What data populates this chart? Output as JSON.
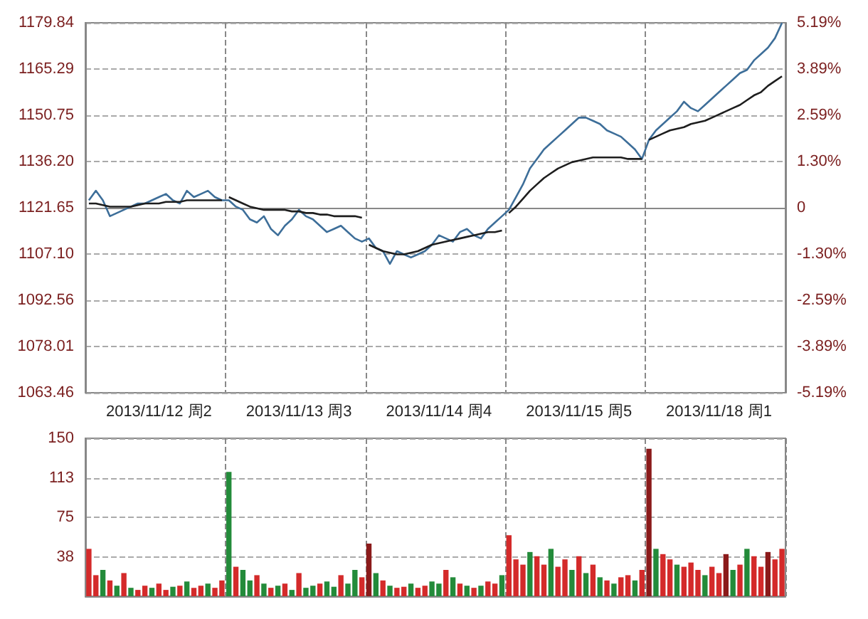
{
  "chart_data": [
    {
      "type": "line",
      "categories": [
        null,
        null,
        null,
        null,
        null,
        null,
        null,
        null,
        null,
        null,
        "2013/11/12 周2",
        null,
        null,
        null,
        null,
        null,
        null,
        null,
        null,
        null,
        null,
        null,
        null,
        null,
        null,
        null,
        null,
        null,
        null,
        null,
        "2013/11/13 周3",
        null,
        null,
        null,
        null,
        null,
        null,
        null,
        null,
        null,
        null,
        null,
        null,
        null,
        null,
        null,
        null,
        null,
        null,
        null,
        "2013/11/14 周4",
        null,
        null,
        null,
        null,
        null,
        null,
        null,
        null,
        null,
        null,
        null,
        null,
        null,
        null,
        null,
        null,
        null,
        null,
        null,
        "2013/11/15 周5",
        null,
        null,
        null,
        null,
        null,
        null,
        null,
        null,
        null,
        null,
        null,
        null,
        null,
        null,
        null,
        null,
        null,
        null,
        null,
        "2013/11/18 周1",
        null,
        null,
        null,
        null,
        null,
        null,
        null,
        null,
        null
      ],
      "ylim": [
        1063.46,
        1179.84
      ],
      "yticks": [
        1063.46,
        {
          "value": 1078.01,
          "label": "1078.01"
        },
        1092.56,
        {
          "value": 1107.1,
          "label": "1107.10"
        },
        1121.65,
        {
          "value": 1136.2,
          "label": "1136.20"
        },
        1150.75,
        1165.29,
        1179.84
      ],
      "y2lim": [
        -5.19,
        5.19
      ],
      "y2ticks": [
        {
          "value": -5.19,
          "label": "-5.19%"
        },
        {
          "value": -3.89,
          "label": "-3.89%"
        },
        {
          "value": -2.59,
          "label": "-2.59%"
        },
        {
          "value": -1.3,
          "label": "-1.30%"
        },
        0,
        {
          "value": 1.3,
          "label": "1.30%"
        },
        {
          "value": 2.59,
          "label": "2.59%"
        },
        {
          "value": 3.89,
          "label": "3.89%"
        },
        {
          "value": 5.19,
          "label": "5.19%"
        }
      ],
      "grid": true,
      "series": [
        {
          "color": "#3d6e99",
          "values": [
            1124,
            1127,
            1124,
            1119,
            1120,
            1121,
            1122,
            1123,
            1123,
            1124,
            1125,
            1126,
            1124,
            1123,
            1127,
            1125,
            1126,
            1127,
            1125,
            1124,
            1124,
            1122,
            1121,
            1118,
            1117,
            1119,
            1115,
            1113,
            1116,
            1118,
            1121,
            1119,
            1118,
            1116,
            1114,
            1115,
            1116,
            1114,
            1112,
            1111,
            1112,
            1109,
            1108,
            1104,
            1108,
            1107,
            1106,
            1107,
            1108,
            1110,
            1113,
            1112,
            1111,
            1114,
            1115,
            1113,
            1112,
            1115,
            1117,
            1119,
            1121,
            1125,
            1129,
            1134,
            1137,
            1140,
            1142,
            1144,
            1146,
            1148,
            1150,
            1150,
            1149,
            1148,
            1146,
            1145,
            1144,
            1142,
            1140,
            1137,
            1143,
            1146,
            1148,
            1150,
            1152,
            1155,
            1153,
            1152,
            1154,
            1156,
            1158,
            1160,
            1162,
            1164,
            1165,
            1168,
            1170,
            1172,
            1175,
            1179.8
          ]
        },
        {
          "color": "#1e1e1e",
          "values": [
            1123,
            1123,
            1122.5,
            1122,
            1122,
            1122,
            1122,
            1122.5,
            1123,
            1123,
            1123,
            1123.5,
            1123.5,
            1123.5,
            1124,
            1124,
            1124,
            1124,
            1124,
            1124,
            null,
            null,
            null,
            null,
            null,
            null,
            null,
            null,
            null,
            null,
            null,
            null,
            null,
            null,
            null,
            null,
            null,
            null,
            null,
            null,
            null,
            null,
            null,
            null,
            null,
            null,
            null,
            null,
            null,
            null,
            null,
            null,
            null,
            null,
            null,
            null,
            null,
            null,
            null,
            null,
            null,
            null,
            null,
            null,
            null,
            null,
            null,
            null,
            null,
            null,
            null,
            null,
            null,
            null,
            null,
            null,
            null,
            null,
            null,
            null,
            null,
            null,
            null,
            null,
            null,
            null,
            null,
            null,
            null,
            null,
            null,
            null,
            null,
            null,
            null,
            null,
            null,
            null,
            null,
            null
          ]
        },
        {
          "color": "#1e1e1e",
          "values": [
            null,
            null,
            null,
            null,
            null,
            null,
            null,
            null,
            null,
            null,
            null,
            null,
            null,
            null,
            null,
            null,
            null,
            null,
            null,
            null,
            1125,
            1124,
            1123,
            1122,
            1121.5,
            1121,
            1121,
            1121,
            1121,
            1120.5,
            1120.5,
            1120,
            1120,
            1119.5,
            1119.5,
            1119,
            1119,
            1119,
            1119,
            1118.5,
            null,
            null,
            null,
            null,
            null,
            null,
            null,
            null,
            null,
            null,
            null,
            null,
            null,
            null,
            null,
            null,
            null,
            null,
            null,
            null,
            null,
            null,
            null,
            null,
            null,
            null,
            null,
            null,
            null,
            null,
            null,
            null,
            null,
            null,
            null,
            null,
            null,
            null,
            null,
            null,
            null,
            null,
            null,
            null,
            null,
            null,
            null,
            null,
            null,
            null,
            null,
            null,
            null,
            null,
            null,
            null,
            null,
            null,
            null,
            null
          ]
        },
        {
          "color": "#1e1e1e",
          "values": [
            null,
            null,
            null,
            null,
            null,
            null,
            null,
            null,
            null,
            null,
            null,
            null,
            null,
            null,
            null,
            null,
            null,
            null,
            null,
            null,
            null,
            null,
            null,
            null,
            null,
            null,
            null,
            null,
            null,
            null,
            null,
            null,
            null,
            null,
            null,
            null,
            null,
            null,
            null,
            null,
            1110,
            1109,
            1108,
            1107.5,
            1107,
            1107,
            1107.5,
            1108,
            1109,
            1110,
            1110.5,
            1111,
            1111.5,
            1112,
            1112.5,
            1113,
            1113.5,
            1114,
            1114,
            1114.5,
            null,
            null,
            null,
            null,
            null,
            null,
            null,
            null,
            null,
            null,
            null,
            null,
            null,
            null,
            null,
            null,
            null,
            null,
            null,
            null,
            null,
            null,
            null,
            null,
            null,
            null,
            null,
            null,
            null,
            null,
            null,
            null,
            null,
            null,
            null,
            null,
            null,
            null,
            null,
            null
          ]
        },
        {
          "color": "#1e1e1e",
          "values": [
            null,
            null,
            null,
            null,
            null,
            null,
            null,
            null,
            null,
            null,
            null,
            null,
            null,
            null,
            null,
            null,
            null,
            null,
            null,
            null,
            null,
            null,
            null,
            null,
            null,
            null,
            null,
            null,
            null,
            null,
            null,
            null,
            null,
            null,
            null,
            null,
            null,
            null,
            null,
            null,
            null,
            null,
            null,
            null,
            null,
            null,
            null,
            null,
            null,
            null,
            null,
            null,
            null,
            null,
            null,
            null,
            null,
            null,
            null,
            null,
            1120,
            1122,
            1124.5,
            1127,
            1129,
            1131,
            1132.5,
            1134,
            1135,
            1136,
            1136.5,
            1137,
            1137.5,
            1137.5,
            1137.5,
            1137.5,
            1137.5,
            1137,
            1137,
            1137,
            null,
            null,
            null,
            null,
            null,
            null,
            null,
            null,
            null,
            null,
            null,
            null,
            null,
            null,
            null,
            null,
            null,
            null,
            null,
            null
          ]
        },
        {
          "color": "#1e1e1e",
          "values": [
            null,
            null,
            null,
            null,
            null,
            null,
            null,
            null,
            null,
            null,
            null,
            null,
            null,
            null,
            null,
            null,
            null,
            null,
            null,
            null,
            null,
            null,
            null,
            null,
            null,
            null,
            null,
            null,
            null,
            null,
            null,
            null,
            null,
            null,
            null,
            null,
            null,
            null,
            null,
            null,
            null,
            null,
            null,
            null,
            null,
            null,
            null,
            null,
            null,
            null,
            null,
            null,
            null,
            null,
            null,
            null,
            null,
            null,
            null,
            null,
            null,
            null,
            null,
            null,
            null,
            null,
            null,
            null,
            null,
            null,
            null,
            null,
            null,
            null,
            null,
            null,
            null,
            null,
            null,
            null,
            1143,
            1144,
            1145,
            1146,
            1146.5,
            1147,
            1148,
            1148.5,
            1149,
            1150,
            1151,
            1152,
            1153,
            1154,
            1155.5,
            1157,
            1158,
            1160,
            1161.5,
            1163
          ]
        }
      ]
    },
    {
      "type": "bar",
      "tick_labels": "y",
      "grid": true,
      "categories": [
        null,
        null,
        null,
        null,
        null,
        null,
        null,
        null,
        null,
        null,
        null,
        null,
        null,
        null,
        null,
        null,
        null,
        null,
        null,
        null,
        null,
        null,
        null,
        null,
        null,
        null,
        null,
        null,
        null,
        null,
        null,
        null,
        null,
        null,
        null,
        null,
        null,
        null,
        null,
        null,
        null,
        null,
        null,
        null,
        null,
        null,
        null,
        null,
        null,
        null,
        null,
        null,
        null,
        null,
        null,
        null,
        null,
        null,
        null,
        null,
        null,
        null,
        null,
        null,
        null,
        null,
        null,
        null,
        null,
        null,
        null,
        null,
        null,
        null,
        null,
        null,
        null,
        null,
        null,
        null,
        null,
        null,
        null,
        null,
        null,
        null,
        null,
        null,
        null,
        null,
        null,
        null,
        null,
        null,
        null,
        null,
        null,
        null,
        null,
        null
      ],
      "ylim": [
        0,
        150
      ],
      "yticks": [
        {
          "value": 0,
          "label": null
        },
        {
          "value": 37.5,
          "label": "38"
        },
        75,
        {
          "value": 112.5,
          "label": "113"
        },
        150
      ],
      "values": [
        45,
        20,
        25,
        15,
        10,
        22,
        8,
        6,
        10,
        8,
        12,
        6,
        9,
        10,
        14,
        8,
        10,
        12,
        8,
        15,
        118,
        28,
        25,
        15,
        20,
        12,
        8,
        10,
        12,
        6,
        22,
        8,
        10,
        12,
        14,
        9,
        20,
        12,
        25,
        18,
        50,
        22,
        15,
        10,
        8,
        9,
        12,
        8,
        10,
        14,
        12,
        25,
        18,
        12,
        10,
        8,
        10,
        14,
        12,
        20,
        58,
        35,
        30,
        42,
        38,
        30,
        45,
        28,
        35,
        25,
        38,
        22,
        30,
        18,
        15,
        12,
        18,
        20,
        15,
        25,
        140,
        45,
        40,
        35,
        30,
        28,
        32,
        25,
        20,
        28,
        22,
        40,
        25,
        30,
        45,
        38,
        28,
        42,
        35,
        45
      ],
      "colors": [
        "#d42a2a",
        "#d42a2a",
        "#238b3a",
        "#d42a2a",
        "#238b3a",
        "#d42a2a",
        "#238b3a",
        "#d42a2a",
        "#d42a2a",
        "#238b3a",
        "#d42a2a",
        "#d42a2a",
        "#238b3a",
        "#d42a2a",
        "#238b3a",
        "#d42a2a",
        "#d42a2a",
        "#238b3a",
        "#d42a2a",
        "#d42a2a",
        "#238b3a",
        "#d42a2a",
        "#238b3a",
        "#238b3a",
        "#d42a2a",
        "#238b3a",
        "#d42a2a",
        "#238b3a",
        "#d42a2a",
        "#238b3a",
        "#d42a2a",
        "#238b3a",
        "#238b3a",
        "#d42a2a",
        "#238b3a",
        "#238b3a",
        "#d42a2a",
        "#238b3a",
        "#238b3a",
        "#d42a2a",
        "#8b1a1a",
        "#238b3a",
        "#d42a2a",
        "#238b3a",
        "#d42a2a",
        "#d42a2a",
        "#238b3a",
        "#d42a2a",
        "#d42a2a",
        "#238b3a",
        "#238b3a",
        "#d42a2a",
        "#238b3a",
        "#d42a2a",
        "#238b3a",
        "#d42a2a",
        "#238b3a",
        "#d42a2a",
        "#d42a2a",
        "#238b3a",
        "#d42a2a",
        "#d42a2a",
        "#d42a2a",
        "#238b3a",
        "#d42a2a",
        "#d42a2a",
        "#238b3a",
        "#d42a2a",
        "#d42a2a",
        "#238b3a",
        "#d42a2a",
        "#238b3a",
        "#d42a2a",
        "#238b3a",
        "#d42a2a",
        "#238b3a",
        "#d42a2a",
        "#d42a2a",
        "#238b3a",
        "#d42a2a",
        "#8b1a1a",
        "#238b3a",
        "#d42a2a",
        "#d42a2a",
        "#238b3a",
        "#d42a2a",
        "#d42a2a",
        "#d42a2a",
        "#238b3a",
        "#d42a2a",
        "#d42a2a",
        "#8b1a1a",
        "#238b3a",
        "#d42a2a",
        "#238b3a",
        "#d42a2a",
        "#d42a2a",
        "#8b1a1a",
        "#d42a2a",
        "#d42a2a"
      ]
    }
  ]
}
